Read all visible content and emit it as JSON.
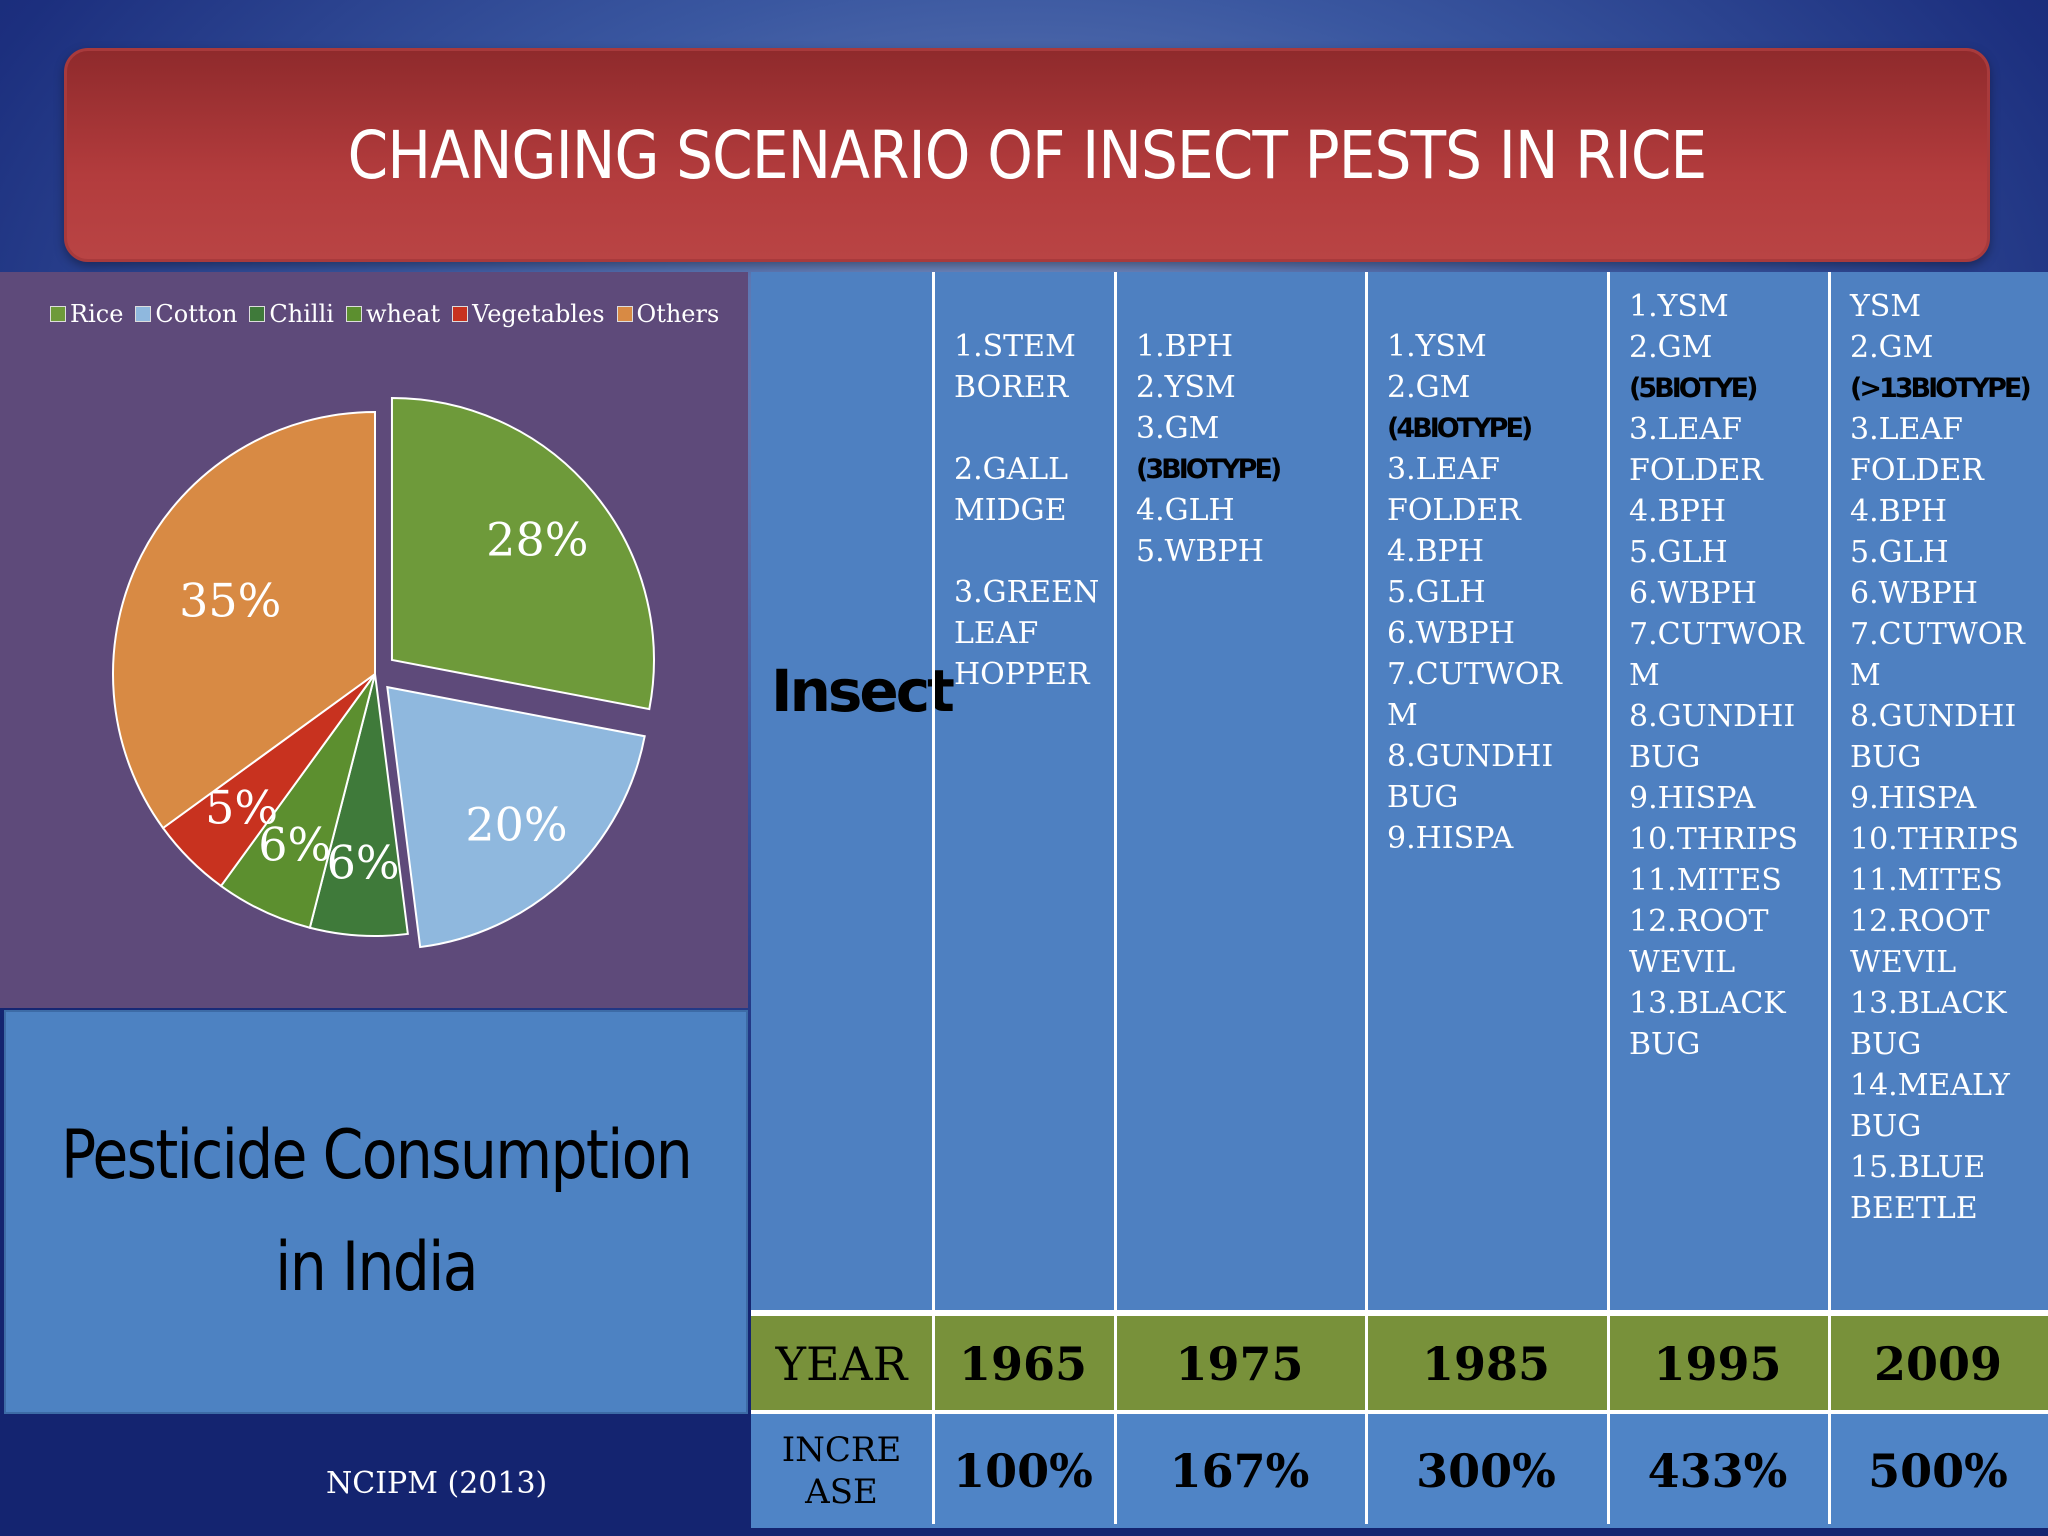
{
  "title": "CHANGING SCENARIO OF INSECT PESTS IN RICE",
  "chart_data": {
    "type": "pie",
    "categories": [
      "Rice",
      "Cotton",
      "Chilli",
      "wheat",
      "Vegetables",
      "Others"
    ],
    "values": [
      28,
      20,
      6,
      6,
      5,
      35
    ],
    "labels": [
      "28%",
      "20%",
      "6%",
      "6%",
      "5%",
      "35%"
    ],
    "colors": [
      "#6e9a3a",
      "#8fb8de",
      "#3f7a3a",
      "#5c8f2f",
      "#c8321f",
      "#d88a44"
    ],
    "legend_position": "top"
  },
  "caption": "Pesticide Consumption in India",
  "source": "NCIPM (2013)",
  "table": {
    "insect_label": "Insect",
    "year_label": "YEAR",
    "increase_label": "INCRE\nASE",
    "columns": [
      {
        "year": "1965",
        "increase": "100%",
        "items": [
          "1.STEM\nBORER",
          "",
          "2.GALL\nMIDGE",
          "",
          "3.GREEN\nLEAF\nHOPPER"
        ],
        "biotype": null
      },
      {
        "year": "1975",
        "increase": "167%",
        "items_before": [
          "1.BPH",
          "2.YSM",
          "3.GM"
        ],
        "biotype": "(3BIOTYPE)",
        "items_after": [
          "4.GLH",
          "5.WBPH"
        ]
      },
      {
        "year": "1985",
        "increase": "300%",
        "items_before": [
          "1.YSM",
          "2.GM"
        ],
        "biotype": "(4BIOTYPE)",
        "items_after": [
          "3.LEAF\nFOLDER",
          "4.BPH",
          "5.GLH",
          "6.WBPH",
          "7.CUTWOR\nM",
          "8.GUNDHI\nBUG",
          "9.HISPA"
        ]
      },
      {
        "year": "1995",
        "increase": "433%",
        "items_before": [
          "1.YSM",
          "2.GM"
        ],
        "biotype": "(5BIOTYE)",
        "items_after": [
          "3.LEAF\nFOLDER",
          "4.BPH",
          "5.GLH",
          "6.WBPH",
          "7.CUTWOR\nM",
          "8.GUNDHI\nBUG",
          "9.HISPA",
          "10.THRIPS",
          "11.MITES",
          "12.ROOT\nWEVIL",
          "13.BLACK\nBUG"
        ]
      },
      {
        "year": "2009",
        "increase": "500%",
        "items_before": [
          "YSM",
          "2.GM"
        ],
        "biotype": "(>13BIOTYPE)",
        "items_after": [
          "3.LEAF\nFOLDER",
          "4.BPH",
          "5.GLH",
          "6.WBPH",
          "7.CUTWOR\nM",
          "8.GUNDHI\nBUG",
          "9.HISPA",
          "10.THRIPS",
          "11.MITES",
          "12.ROOT\nWEVIL",
          "13.BLACK\nBUG",
          "14.MEALY\nBUG",
          "15.BLUE\nBEETLE"
        ]
      }
    ]
  }
}
